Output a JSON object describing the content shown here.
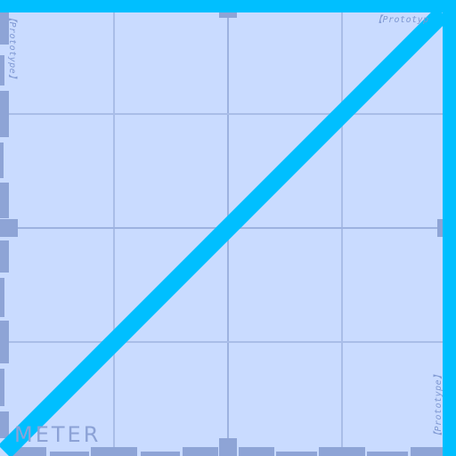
{
  "watermark": {
    "top_right": "【Prototyp",
    "top_left": "【Prototype】",
    "bottom_right": "【Prototype】"
  },
  "meter": {
    "label": "METER",
    "value_fraction": 1.0
  },
  "colors": {
    "background": "#c9dbff",
    "accent": "#00bfff",
    "grid": "#a9bde8",
    "ruler": "#8ea4d6"
  }
}
